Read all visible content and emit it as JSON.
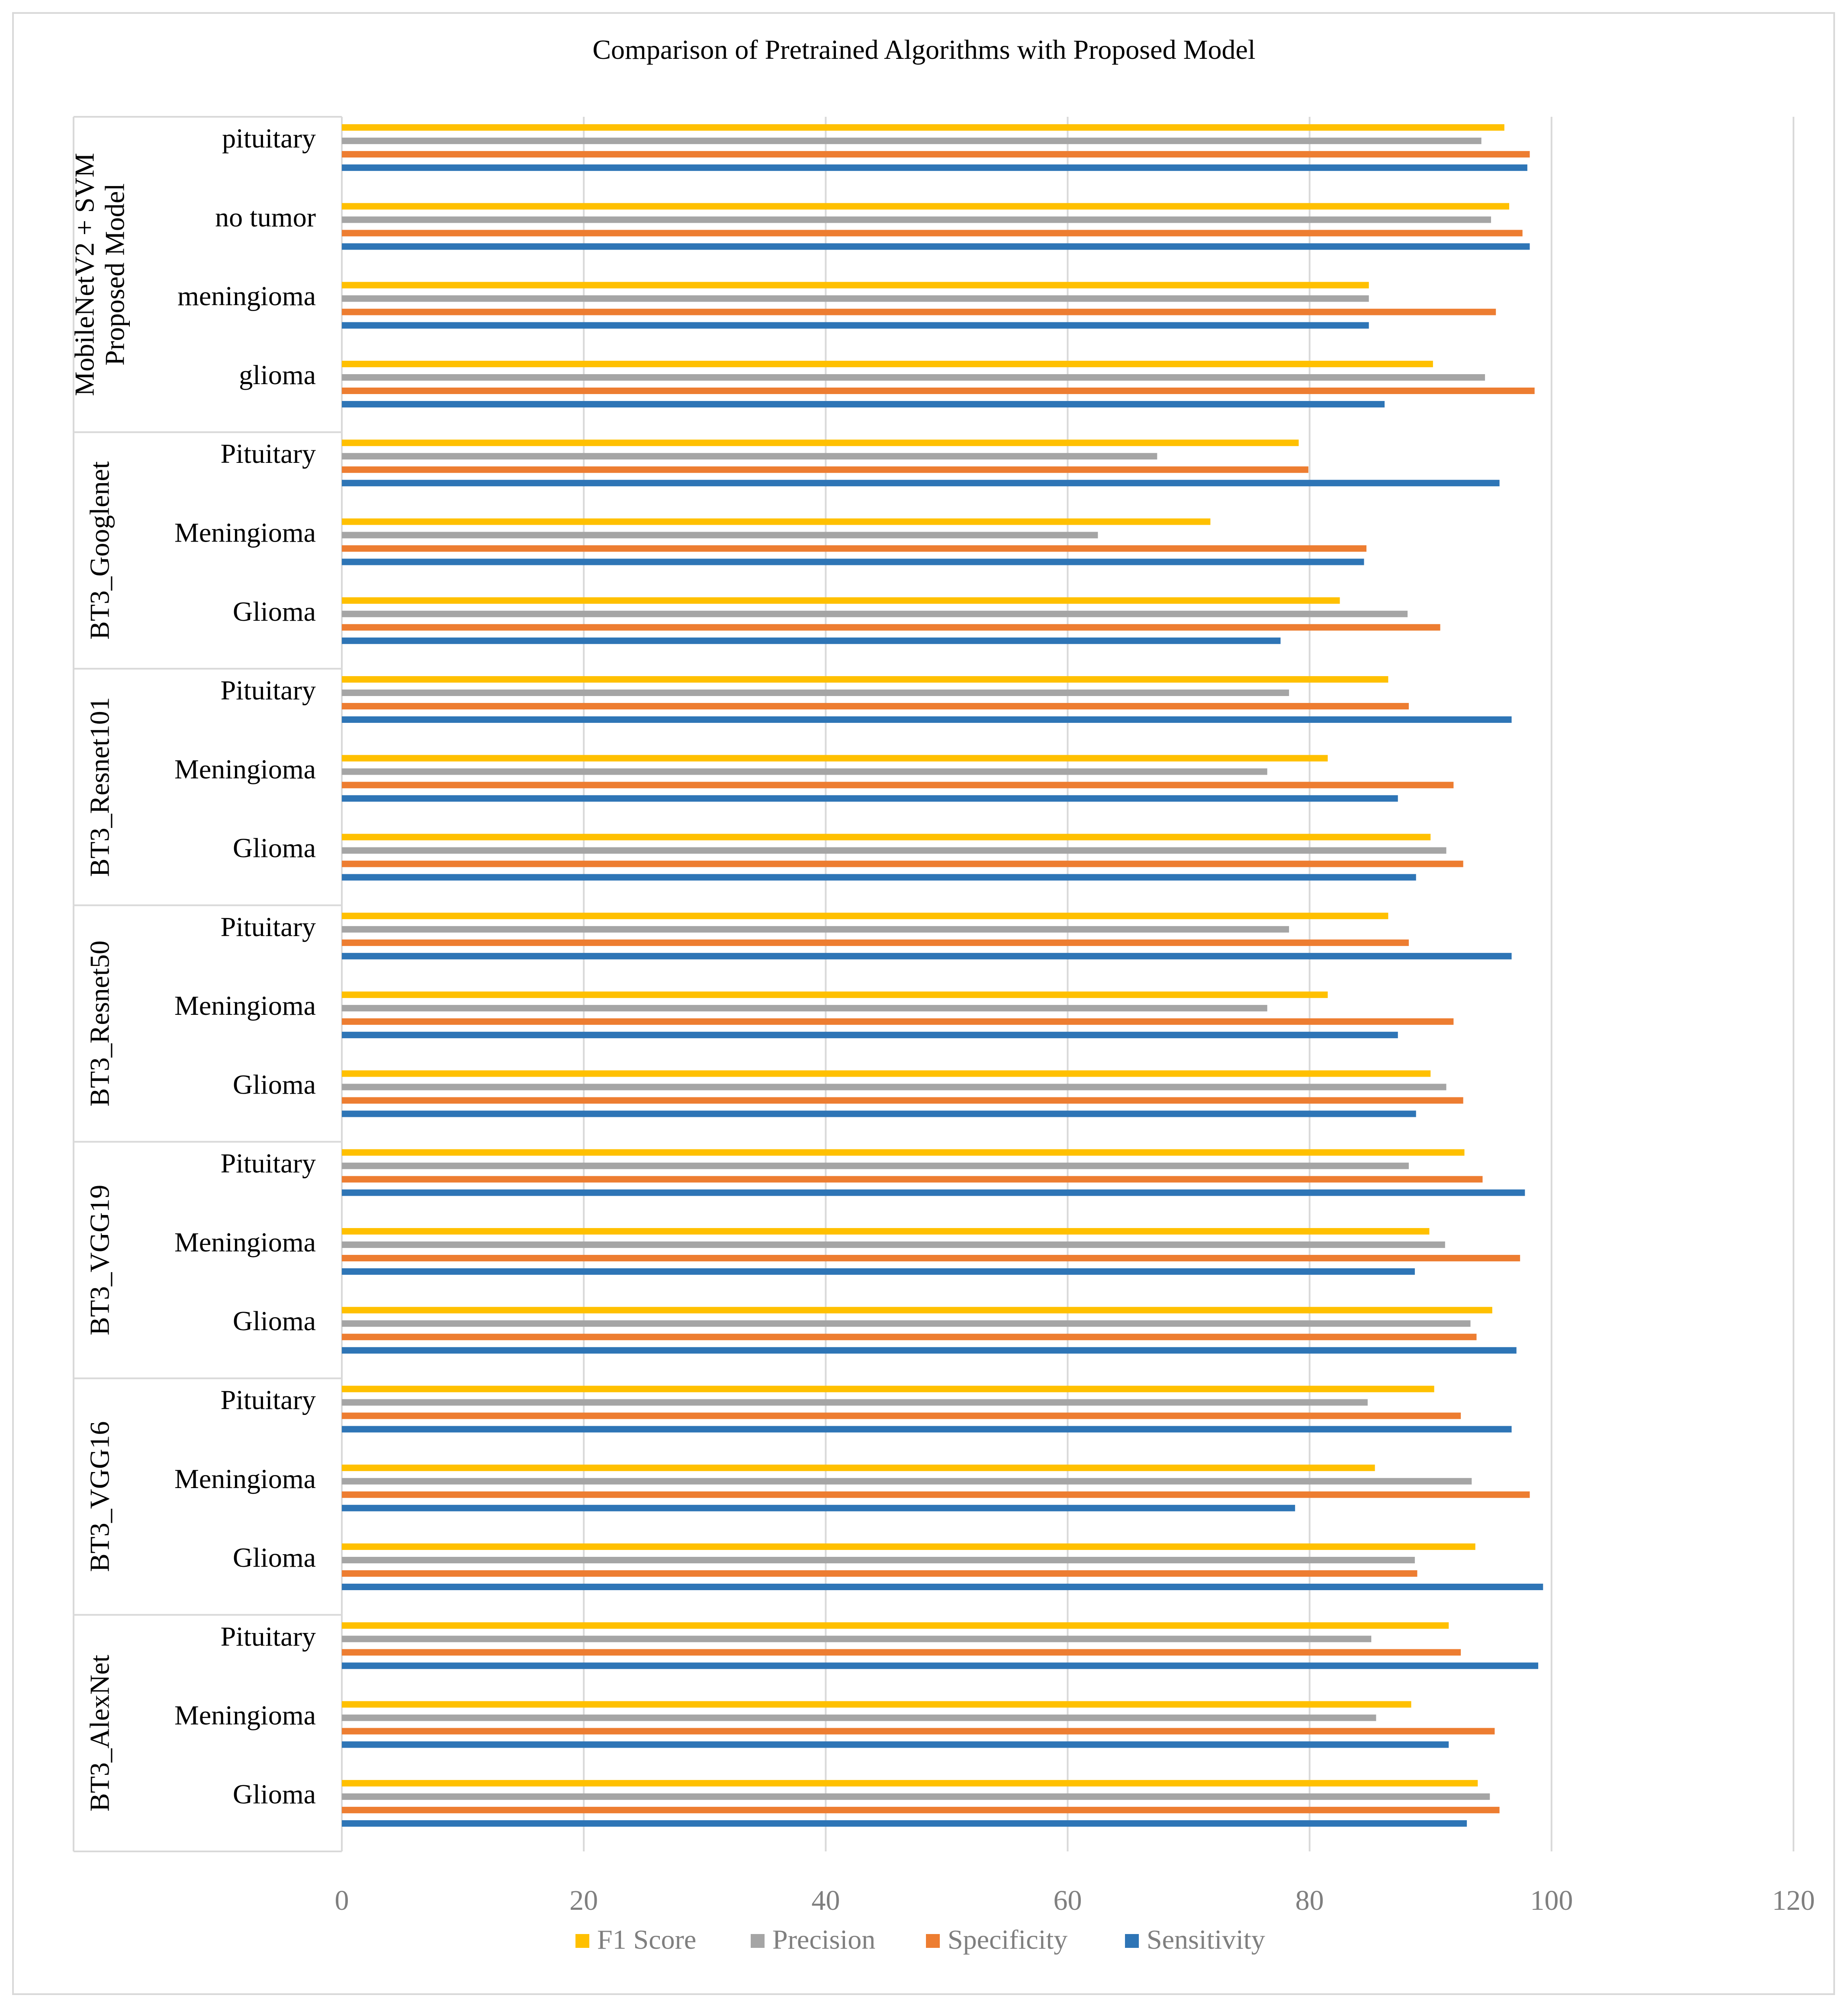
{
  "chart_data": {
    "type": "bar",
    "orientation": "horizontal",
    "title": "Comparison of Pretrained Algorithms with Proposed Model",
    "xlabel": "",
    "ylabel": "",
    "xlim": [
      0,
      120
    ],
    "xticks": [
      0,
      20,
      40,
      60,
      80,
      100,
      120
    ],
    "grid": true,
    "legend_position": "bottom",
    "series_names": [
      "F1 Score",
      "Precision",
      "Specificity",
      "Sensitivity"
    ],
    "colors": {
      "F1 Score": "#ffc000",
      "Precision": "#a5a5a5",
      "Specificity": "#ed7d31",
      "Sensitivity": "#2e75b6"
    },
    "groups": [
      {
        "name_lines": [
          "MobileNetV2 + SVM",
          "Proposed Model"
        ],
        "categories": [
          {
            "label": "pituitary",
            "values": {
              "F1 Score": 96.1,
              "Precision": 94.2,
              "Specificity": 98.2,
              "Sensitivity": 98.0
            }
          },
          {
            "label": "no tumor",
            "values": {
              "F1 Score": 96.5,
              "Precision": 95.0,
              "Specificity": 97.6,
              "Sensitivity": 98.2
            }
          },
          {
            "label": "meningioma",
            "values": {
              "F1 Score": 84.9,
              "Precision": 84.9,
              "Specificity": 95.4,
              "Sensitivity": 84.9
            }
          },
          {
            "label": "glioma",
            "values": {
              "F1 Score": 90.2,
              "Precision": 94.5,
              "Specificity": 98.6,
              "Sensitivity": 86.2
            }
          }
        ]
      },
      {
        "name_lines": [
          "BT3_Googlenet"
        ],
        "categories": [
          {
            "label": "Pituitary",
            "values": {
              "F1 Score": 79.1,
              "Precision": 67.4,
              "Specificity": 79.9,
              "Sensitivity": 95.7
            }
          },
          {
            "label": "Meningioma",
            "values": {
              "F1 Score": 71.8,
              "Precision": 62.5,
              "Specificity": 84.7,
              "Sensitivity": 84.5
            }
          },
          {
            "label": "Glioma",
            "values": {
              "F1 Score": 82.5,
              "Precision": 88.1,
              "Specificity": 90.8,
              "Sensitivity": 77.6
            }
          }
        ]
      },
      {
        "name_lines": [
          "BT3_Resnet101"
        ],
        "categories": [
          {
            "label": "Pituitary",
            "values": {
              "F1 Score": 86.5,
              "Precision": 78.3,
              "Specificity": 88.2,
              "Sensitivity": 96.7
            }
          },
          {
            "label": "Meningioma",
            "values": {
              "F1 Score": 81.5,
              "Precision": 76.5,
              "Specificity": 91.9,
              "Sensitivity": 87.3
            }
          },
          {
            "label": "Glioma",
            "values": {
              "F1 Score": 90.0,
              "Precision": 91.3,
              "Specificity": 92.7,
              "Sensitivity": 88.8
            }
          }
        ]
      },
      {
        "name_lines": [
          "BT3_Resnet50"
        ],
        "categories": [
          {
            "label": "Pituitary",
            "values": {
              "F1 Score": 86.5,
              "Precision": 78.3,
              "Specificity": 88.2,
              "Sensitivity": 96.7
            }
          },
          {
            "label": "Meningioma",
            "values": {
              "F1 Score": 81.5,
              "Precision": 76.5,
              "Specificity": 91.9,
              "Sensitivity": 87.3
            }
          },
          {
            "label": "Glioma",
            "values": {
              "F1 Score": 90.0,
              "Precision": 91.3,
              "Specificity": 92.7,
              "Sensitivity": 88.8
            }
          }
        ]
      },
      {
        "name_lines": [
          "BT3_VGG19"
        ],
        "categories": [
          {
            "label": "Pituitary",
            "values": {
              "F1 Score": 92.8,
              "Precision": 88.2,
              "Specificity": 94.3,
              "Sensitivity": 97.8
            }
          },
          {
            "label": "Meningioma",
            "values": {
              "F1 Score": 89.9,
              "Precision": 91.2,
              "Specificity": 97.4,
              "Sensitivity": 88.7
            }
          },
          {
            "label": "Glioma",
            "values": {
              "F1 Score": 95.1,
              "Precision": 93.3,
              "Specificity": 93.8,
              "Sensitivity": 97.1
            }
          }
        ]
      },
      {
        "name_lines": [
          "BT3_VGG16"
        ],
        "categories": [
          {
            "label": "Pituitary",
            "values": {
              "F1 Score": 90.3,
              "Precision": 84.8,
              "Specificity": 92.5,
              "Sensitivity": 96.7
            }
          },
          {
            "label": "Meningioma",
            "values": {
              "F1 Score": 85.4,
              "Precision": 93.4,
              "Specificity": 98.2,
              "Sensitivity": 78.8
            }
          },
          {
            "label": "Glioma",
            "values": {
              "F1 Score": 93.7,
              "Precision": 88.7,
              "Specificity": 88.9,
              "Sensitivity": 99.3
            }
          }
        ]
      },
      {
        "name_lines": [
          "BT3_AlexNet"
        ],
        "categories": [
          {
            "label": "Pituitary",
            "values": {
              "F1 Score": 91.5,
              "Precision": 85.1,
              "Specificity": 92.5,
              "Sensitivity": 98.9
            }
          },
          {
            "label": "Meningioma",
            "values": {
              "F1 Score": 88.4,
              "Precision": 85.5,
              "Specificity": 95.3,
              "Sensitivity": 91.5
            }
          },
          {
            "label": "Glioma",
            "values": {
              "F1 Score": 93.9,
              "Precision": 94.9,
              "Specificity": 95.7,
              "Sensitivity": 93.0
            }
          }
        ]
      }
    ]
  }
}
